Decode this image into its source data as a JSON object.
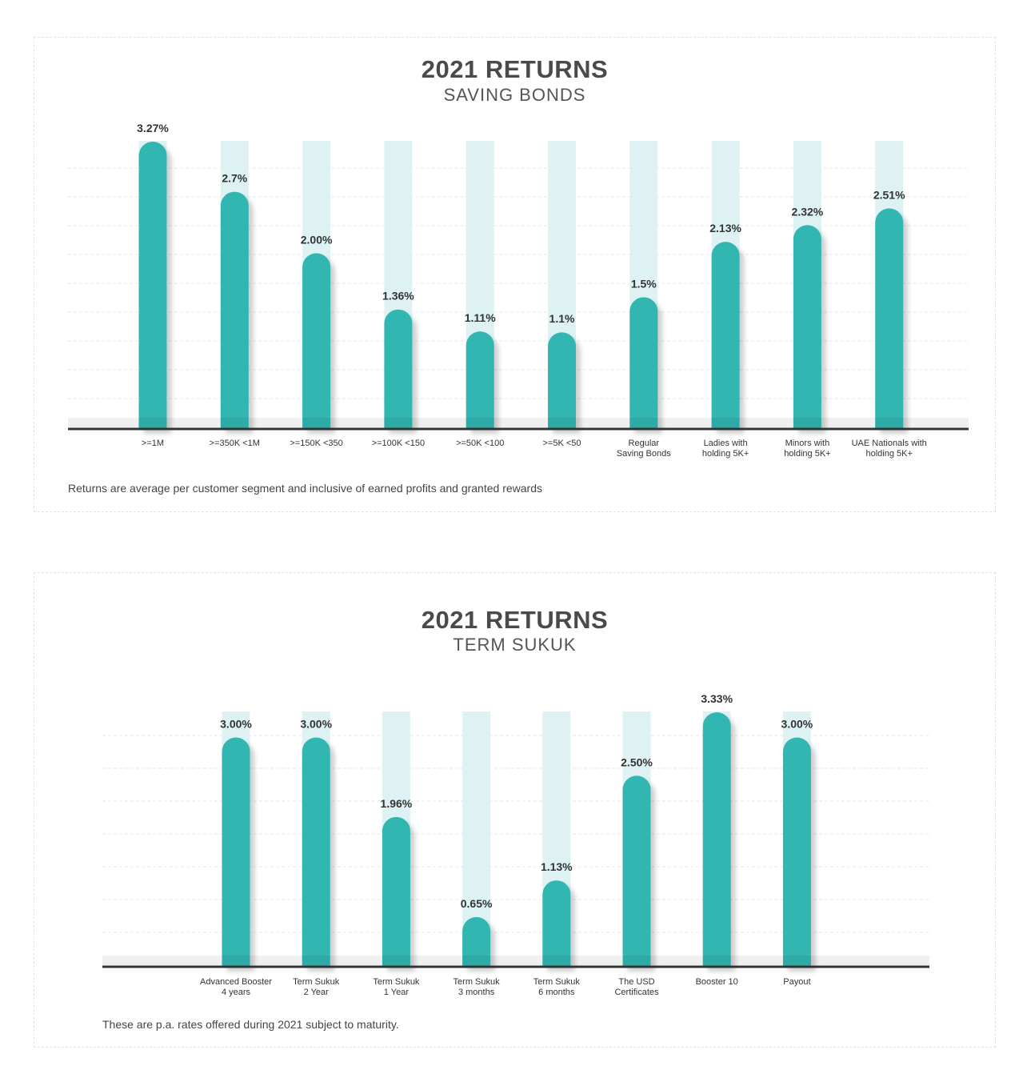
{
  "colors": {
    "bar": "#31b6b2",
    "track": "#dff2f3",
    "axis": "#333333",
    "grid": "#e6e6e6"
  },
  "chart_data": [
    {
      "type": "bar",
      "title": "2021 RETURNS",
      "subtitle": "SAVING BONDS",
      "categories": [
        ">=1M",
        ">=350K <1M",
        ">=150K <350",
        ">=100K <150",
        ">=50K <100",
        ">=5K <50",
        "Regular\nSaving Bonds",
        "Ladies with\nholding 5K+",
        "Minors with\nholding 5K+",
        "UAE Nationals with\nholding 5K+"
      ],
      "values": [
        3.27,
        2.7,
        2.0,
        1.36,
        1.11,
        1.1,
        1.5,
        2.13,
        2.32,
        2.51
      ],
      "value_labels": [
        "3.27%",
        "2.7%",
        "2.00%",
        "1.36%",
        "1.11%",
        "1.1%",
        "1.5%",
        "2.13%",
        "2.32%",
        "2.51%"
      ],
      "ylim": [
        0,
        3.27
      ],
      "grid": true,
      "footnote": "Returns are average per customer segment and inclusive of earned profits and granted rewards"
    },
    {
      "type": "bar",
      "title": "2021 RETURNS",
      "subtitle": "TERM SUKUK",
      "categories": [
        "Advanced Booster\n4 years",
        "Term Sukuk\n2 Year",
        "Term Sukuk\n1 Year",
        "Term Sukuk\n3 months",
        "Term Sukuk\n6 months",
        "The USD\nCertificates",
        "Booster 10",
        "Payout"
      ],
      "values": [
        3.0,
        3.0,
        1.96,
        0.65,
        1.13,
        2.5,
        3.33,
        3.0
      ],
      "value_labels": [
        "3.00%",
        "3.00%",
        "1.96%",
        "0.65%",
        "1.13%",
        "2.50%",
        "3.33%",
        "3.00%"
      ],
      "ylim": [
        0,
        3.33
      ],
      "grid": true,
      "footnote": "These are p.a. rates offered during 2021 subject to maturity."
    }
  ]
}
